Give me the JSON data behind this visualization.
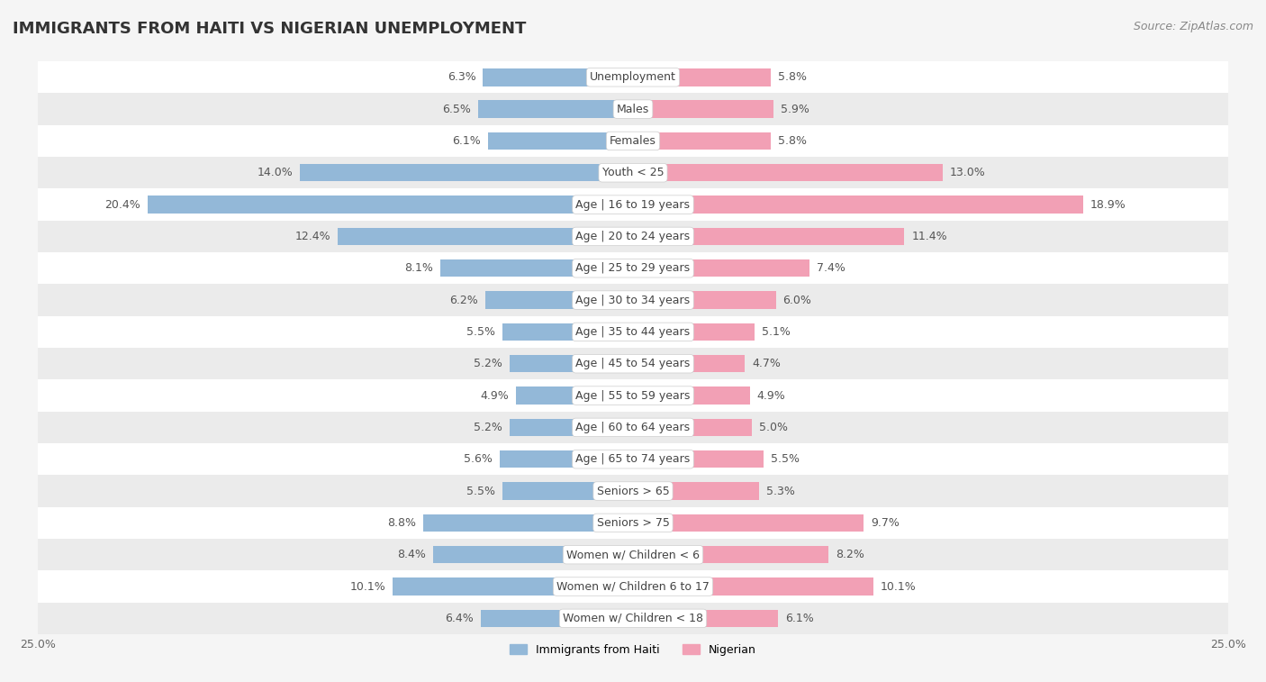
{
  "title": "IMMIGRANTS FROM HAITI VS NIGERIAN UNEMPLOYMENT",
  "source": "Source: ZipAtlas.com",
  "categories": [
    "Unemployment",
    "Males",
    "Females",
    "Youth < 25",
    "Age | 16 to 19 years",
    "Age | 20 to 24 years",
    "Age | 25 to 29 years",
    "Age | 30 to 34 years",
    "Age | 35 to 44 years",
    "Age | 45 to 54 years",
    "Age | 55 to 59 years",
    "Age | 60 to 64 years",
    "Age | 65 to 74 years",
    "Seniors > 65",
    "Seniors > 75",
    "Women w/ Children < 6",
    "Women w/ Children 6 to 17",
    "Women w/ Children < 18"
  ],
  "haiti_values": [
    6.3,
    6.5,
    6.1,
    14.0,
    20.4,
    12.4,
    8.1,
    6.2,
    5.5,
    5.2,
    4.9,
    5.2,
    5.6,
    5.5,
    8.8,
    8.4,
    10.1,
    6.4
  ],
  "nigerian_values": [
    5.8,
    5.9,
    5.8,
    13.0,
    18.9,
    11.4,
    7.4,
    6.0,
    5.1,
    4.7,
    4.9,
    5.0,
    5.5,
    5.3,
    9.7,
    8.2,
    10.1,
    6.1
  ],
  "haiti_color": "#93b8d8",
  "nigerian_color": "#f2a0b5",
  "haiti_label": "Immigrants from Haiti",
  "nigerian_label": "Nigerian",
  "xlim": 25.0,
  "bg_color": "#f5f5f5",
  "row_colors": [
    "#ffffff",
    "#ebebeb"
  ],
  "title_fontsize": 13,
  "source_fontsize": 9,
  "bar_label_fontsize": 9,
  "category_fontsize": 9,
  "legend_fontsize": 9,
  "axis_label_fontsize": 9,
  "bar_height": 0.55
}
